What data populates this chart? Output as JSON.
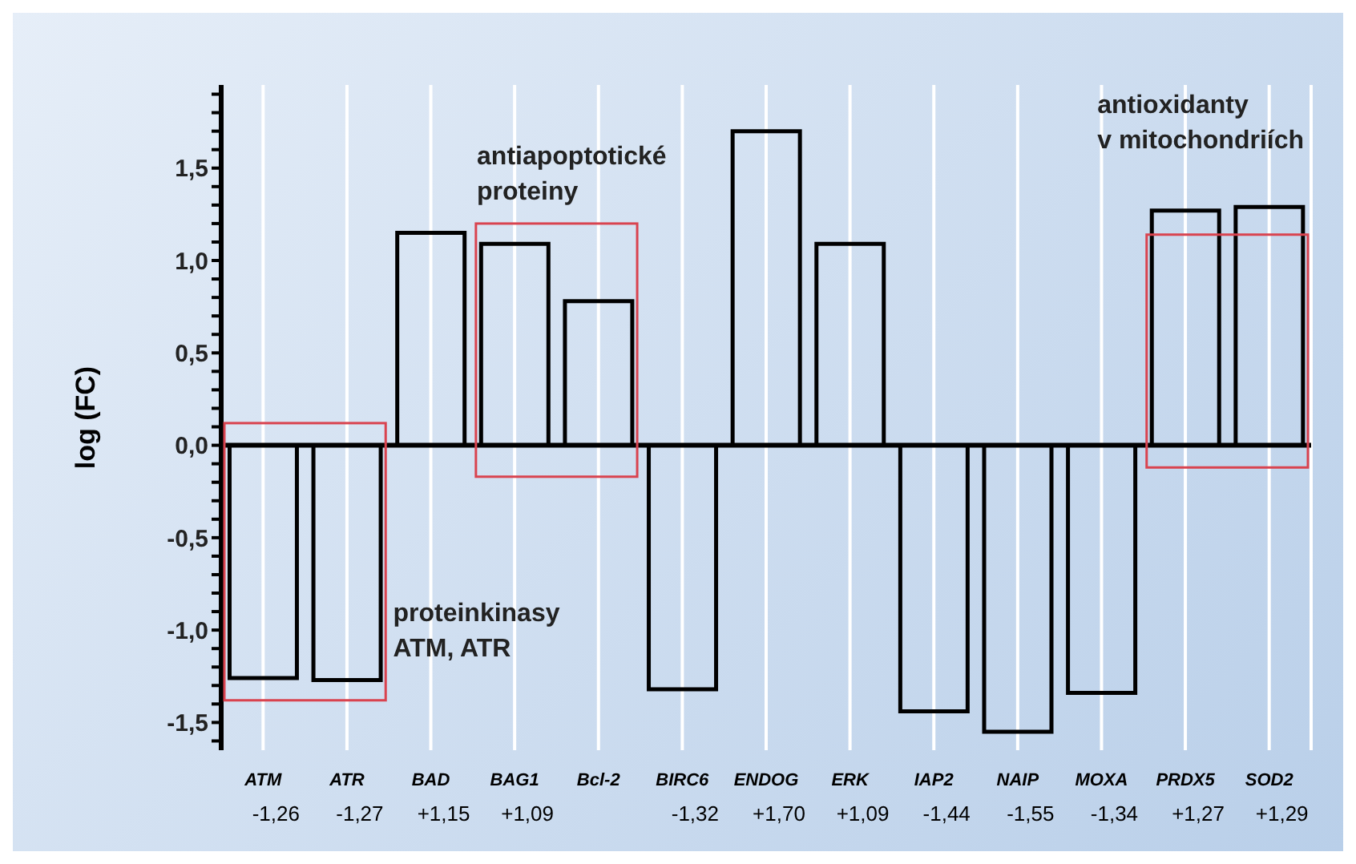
{
  "chart_data": {
    "type": "bar",
    "ylabel": "log (FC)",
    "categories": [
      "ATM",
      "ATR",
      "BAD",
      "BAG1",
      "Bcl-2",
      "BIRC6",
      "ENDOG",
      "ERK",
      "IAP2",
      "NAIP",
      "MOXA",
      "PRDX5",
      "SOD2"
    ],
    "values": [
      -1.26,
      -1.27,
      1.15,
      1.09,
      0.78,
      -1.32,
      1.7,
      1.09,
      -1.44,
      -1.55,
      -1.34,
      1.27,
      1.29
    ],
    "value_labels": [
      "-1,26",
      "-1,27",
      "+1,15",
      "+1,09",
      null,
      "-1,32",
      "+1,70",
      "+1,09",
      "-1,44",
      "-1,55",
      "-1,34",
      "+1,27",
      "+1,29"
    ],
    "color": "#000000",
    "ylim": [
      -1.65,
      1.95
    ],
    "yticks": [
      {
        "value": -1.6,
        "label": null
      },
      {
        "value": -1.5,
        "label": "-1,5"
      },
      {
        "value": -1.4,
        "label": null
      },
      {
        "value": -1.3,
        "label": null
      },
      {
        "value": -1.2,
        "label": null
      },
      {
        "value": -1.1,
        "label": null
      },
      {
        "value": -1.0,
        "label": "-1,0"
      },
      {
        "value": -0.9,
        "label": null
      },
      {
        "value": -0.8,
        "label": null
      },
      {
        "value": -0.7,
        "label": null
      },
      {
        "value": -0.6,
        "label": null
      },
      {
        "value": -0.5,
        "label": "-0,5"
      },
      {
        "value": -0.4,
        "label": null
      },
      {
        "value": -0.3,
        "label": null
      },
      {
        "value": -0.2,
        "label": null
      },
      {
        "value": -0.1,
        "label": null
      },
      {
        "value": 0,
        "label": "0,0"
      },
      {
        "value": 0.1,
        "label": null
      },
      {
        "value": 0.2,
        "label": null
      },
      {
        "value": 0.3,
        "label": null
      },
      {
        "value": 0.4,
        "label": null
      },
      {
        "value": 0.5,
        "label": "0,5"
      },
      {
        "value": 0.6,
        "label": null
      },
      {
        "value": 0.7,
        "label": null
      },
      {
        "value": 0.8,
        "label": null
      },
      {
        "value": 0.9,
        "label": null
      },
      {
        "value": 1.0,
        "label": "1,0"
      },
      {
        "value": 1.1,
        "label": null
      },
      {
        "value": 1.2,
        "label": null
      },
      {
        "value": 1.3,
        "label": null
      },
      {
        "value": 1.4,
        "label": null
      },
      {
        "value": 1.5,
        "label": "1,5"
      },
      {
        "value": 1.6,
        "label": null
      },
      {
        "value": 1.7,
        "label": null
      },
      {
        "value": 1.8,
        "label": null
      },
      {
        "value": 1.9,
        "label": null
      }
    ],
    "grid": "x",
    "annotations": [
      "antiapoptotické proteiny",
      "antioxidanty v mitochondriích",
      "proteinkinasy ATM, ATR"
    ]
  }
}
